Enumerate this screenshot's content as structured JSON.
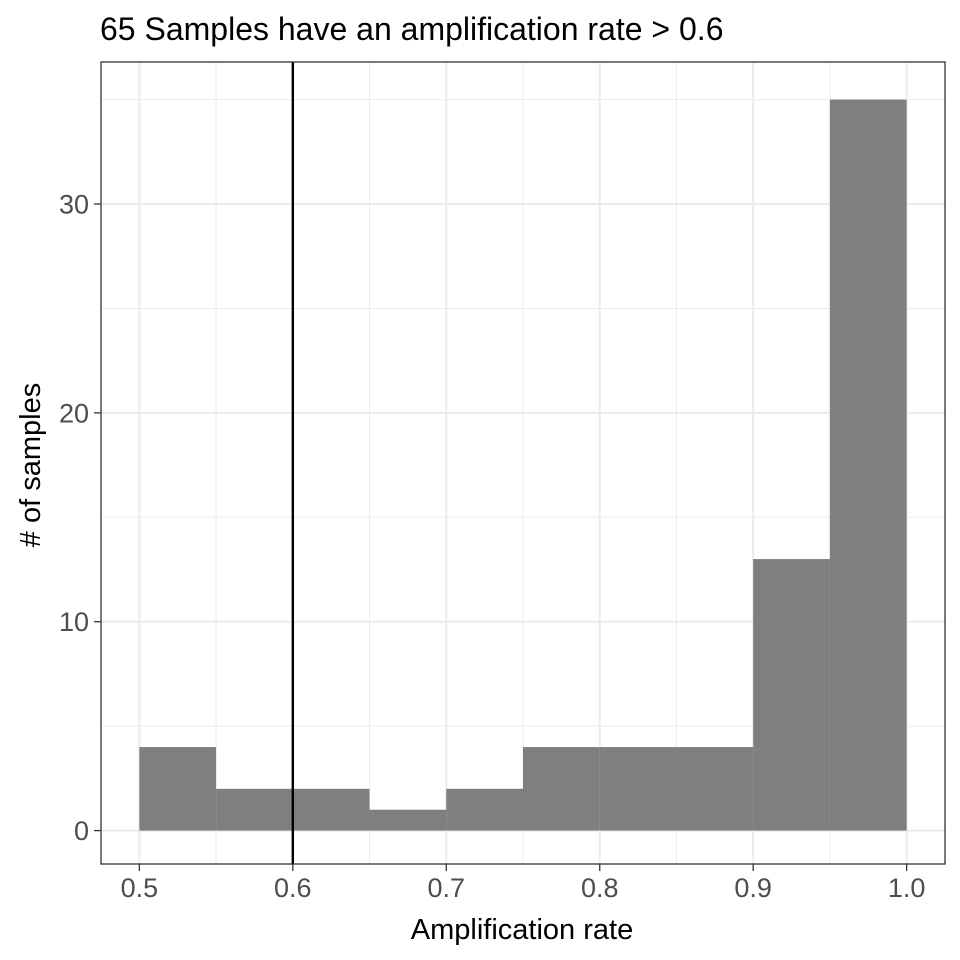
{
  "chart_data": {
    "type": "bar",
    "title": "65 Samples have an amplification rate > 0.6",
    "xlabel": "Amplification rate",
    "ylabel": "# of samples",
    "bins": [
      {
        "start": 0.5,
        "end": 0.55,
        "count": 4
      },
      {
        "start": 0.55,
        "end": 0.6,
        "count": 2
      },
      {
        "start": 0.6,
        "end": 0.65,
        "count": 2
      },
      {
        "start": 0.65,
        "end": 0.7,
        "count": 1
      },
      {
        "start": 0.7,
        "end": 0.75,
        "count": 2
      },
      {
        "start": 0.75,
        "end": 0.8,
        "count": 4
      },
      {
        "start": 0.8,
        "end": 0.85,
        "count": 4
      },
      {
        "start": 0.85,
        "end": 0.9,
        "count": 4
      },
      {
        "start": 0.9,
        "end": 0.95,
        "count": 13
      },
      {
        "start": 0.95,
        "end": 1.0,
        "count": 35
      }
    ],
    "threshold": 0.6,
    "xlim": [
      0.475,
      1.025
    ],
    "ylim": [
      -1.6,
      36.8
    ],
    "xticks": [
      "0.5",
      "0.6",
      "0.7",
      "0.8",
      "0.9",
      "1.0"
    ],
    "yticks": [
      "0",
      "10",
      "20",
      "30"
    ],
    "grid": true,
    "bar_color": "#7f7f7f",
    "threshold_color": "#000000",
    "grid_color": "#ebebeb"
  }
}
